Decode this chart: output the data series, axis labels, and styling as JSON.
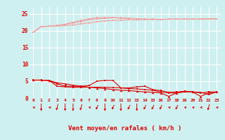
{
  "x": [
    0,
    1,
    2,
    3,
    4,
    5,
    6,
    7,
    8,
    9,
    10,
    11,
    12,
    13,
    14,
    15,
    16,
    17,
    18,
    19,
    20,
    21,
    22,
    23
  ],
  "line1": [
    19.5,
    21.2,
    21.3,
    21.4,
    21.5,
    21.7,
    22.0,
    22.3,
    22.6,
    22.9,
    23.0,
    23.1,
    23.2,
    23.2,
    23.3,
    23.3,
    23.3,
    23.4,
    23.4,
    23.4,
    23.4,
    23.4,
    23.5,
    23.5
  ],
  "line2": [
    19.5,
    21.2,
    21.3,
    21.5,
    21.8,
    22.3,
    22.7,
    23.2,
    23.5,
    23.6,
    23.8,
    23.7,
    23.6,
    23.5,
    23.4,
    23.4,
    23.3,
    23.4,
    23.4,
    23.4,
    23.4,
    23.4,
    23.5,
    23.5
  ],
  "line3": [
    19.5,
    21.2,
    21.3,
    21.5,
    21.9,
    22.5,
    23.0,
    23.5,
    23.8,
    23.9,
    23.9,
    23.8,
    23.7,
    23.5,
    23.4,
    23.4,
    23.3,
    23.4,
    23.4,
    23.4,
    23.4,
    23.4,
    23.5,
    23.5
  ],
  "line4": [
    5.3,
    5.3,
    5.2,
    4.2,
    3.5,
    3.5,
    3.5,
    3.7,
    5.0,
    5.2,
    5.2,
    3.0,
    3.0,
    3.3,
    3.5,
    2.5,
    2.2,
    1.7,
    1.8,
    2.0,
    1.8,
    1.7,
    1.0,
    1.8
  ],
  "line5": [
    5.3,
    5.3,
    5.2,
    3.5,
    3.3,
    3.2,
    3.2,
    3.2,
    3.2,
    3.2,
    3.1,
    3.0,
    2.8,
    2.7,
    2.5,
    2.3,
    1.8,
    1.5,
    1.5,
    1.8,
    1.8,
    1.5,
    1.8,
    1.8
  ],
  "line6": [
    5.3,
    5.3,
    5.2,
    4.5,
    4.2,
    3.8,
    3.5,
    3.2,
    3.0,
    2.8,
    2.5,
    2.3,
    2.2,
    2.0,
    1.8,
    1.7,
    1.5,
    0.5,
    1.5,
    2.0,
    1.8,
    0.5,
    1.5,
    1.8
  ],
  "bg_color": "#cff0f0",
  "grid_color": "#ffffff",
  "line_color_top": "#f4a0a0",
  "line_color_bottom": "#dd0000",
  "xlabel": "Vent moyen/en rafales ( km/h )",
  "ylim": [
    0,
    27
  ],
  "xlim": [
    -0.5,
    23.5
  ],
  "yticks": [
    0,
    5,
    10,
    15,
    20,
    25
  ],
  "xticks": [
    0,
    1,
    2,
    3,
    4,
    5,
    6,
    7,
    8,
    9,
    10,
    11,
    12,
    13,
    14,
    15,
    16,
    17,
    18,
    19,
    20,
    21,
    22,
    23
  ],
  "arrow_angles": [
    270,
    180,
    270,
    210,
    180,
    180,
    210,
    270,
    225,
    180,
    225,
    180,
    225,
    180,
    225,
    225,
    225,
    270,
    225,
    270,
    270,
    270,
    210,
    270
  ]
}
